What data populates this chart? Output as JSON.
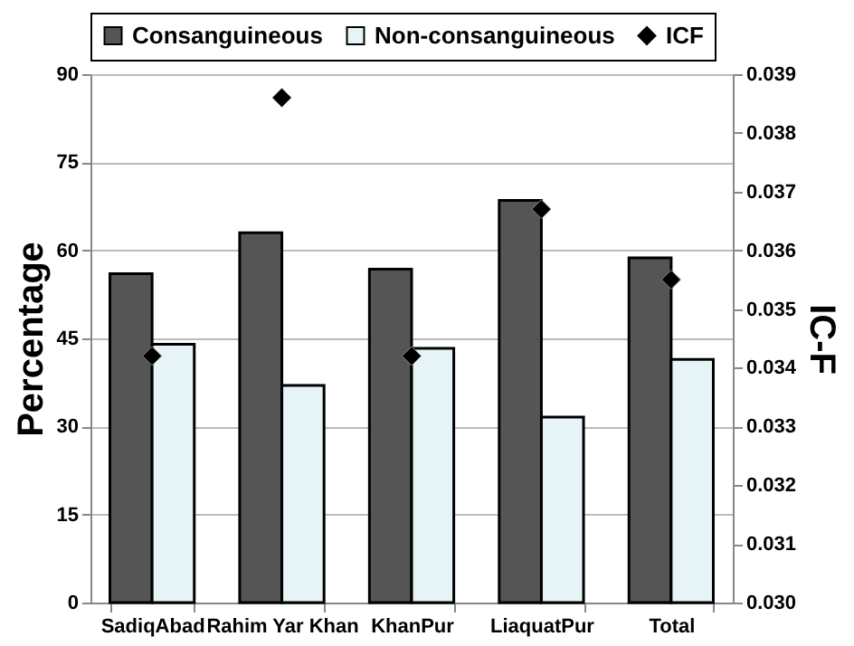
{
  "chart_data": {
    "type": "bar",
    "categories": [
      "SadiqAbad",
      "Rahim Yar Khan",
      "KhanPur",
      "LiaquatPur",
      "Total"
    ],
    "series": [
      {
        "name": "Consanguineous",
        "color": "#555555",
        "values": [
          56,
          63,
          56.8,
          68.5,
          58.7
        ]
      },
      {
        "name": "Non-consanguineous",
        "color": "#e6f4f7",
        "values": [
          44,
          37,
          43.3,
          31.6,
          41.4
        ]
      },
      {
        "name": "ICF",
        "type": "scatter",
        "axis": "y2",
        "marker": "diamond",
        "color": "#000000",
        "values": [
          0.0342,
          0.0386,
          0.0342,
          0.0367,
          0.0355
        ]
      }
    ],
    "ylabel": "Percentage",
    "y2label": "IC-F",
    "ylim": [
      0,
      90
    ],
    "yticks": [
      0,
      15,
      30,
      45,
      60,
      75,
      90
    ],
    "y2lim": [
      0.03,
      0.039
    ],
    "y2ticks": [
      {
        "value": 0.03,
        "label": "0.030"
      },
      {
        "value": 0.031,
        "label": "0.031"
      },
      {
        "value": 0.032,
        "label": "0.032"
      },
      {
        "value": 0.033,
        "label": "0.033"
      },
      {
        "value": 0.034,
        "label": "0.034"
      },
      {
        "value": 0.035,
        "label": "0.035"
      },
      {
        "value": 0.036,
        "label": "0.036"
      },
      {
        "value": 0.037,
        "label": "0.037"
      },
      {
        "value": 0.038,
        "label": "0.038"
      },
      {
        "value": 0.039,
        "label": "0.039"
      }
    ],
    "grid": "y",
    "legend": "top"
  }
}
